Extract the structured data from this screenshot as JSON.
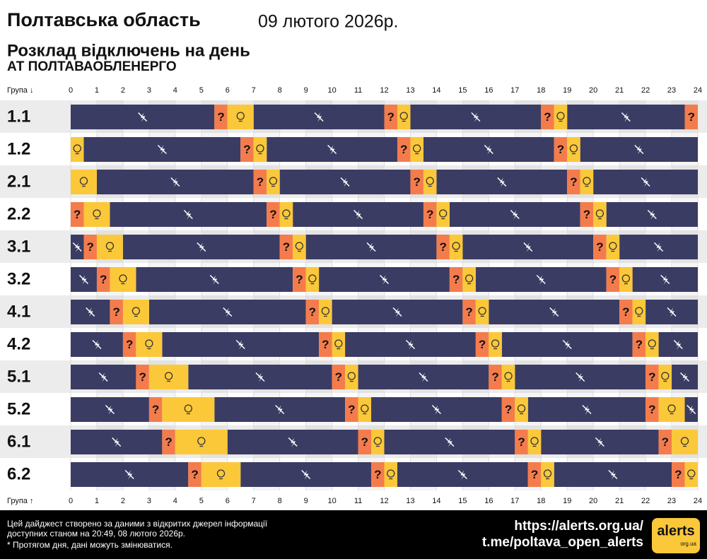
{
  "chart_data": {
    "type": "timeline",
    "title": "Полтавська область",
    "date": "09 лютого 2026р.",
    "subtitle": "Розклад відключень на день",
    "company": "АТ ПОЛТАВАОБЛЕНЕРГО",
    "axis_label_top": "Група ↓",
    "axis_label_bottom": "Група ↑",
    "xlim": [
      0,
      24
    ],
    "xticks": [
      0,
      1,
      2,
      3,
      4,
      5,
      6,
      7,
      8,
      9,
      10,
      11,
      12,
      13,
      14,
      15,
      16,
      17,
      18,
      19,
      20,
      21,
      22,
      23,
      24
    ],
    "groups": [
      "1.1",
      "1.2",
      "2.1",
      "2.2",
      "3.1",
      "3.2",
      "4.1",
      "4.2",
      "5.1",
      "5.2",
      "6.1",
      "6.2"
    ],
    "series": [
      {
        "color": "#3b3c63",
        "ranges": [
          [
            [
              0,
              5.5
            ],
            [
              7,
              12
            ],
            [
              13,
              18
            ],
            [
              19,
              23.5
            ]
          ],
          [
            [
              0.5,
              6.5
            ],
            [
              7.5,
              12.5
            ],
            [
              13.5,
              18.5
            ],
            [
              19.5,
              24
            ]
          ],
          [
            [
              1,
              7
            ],
            [
              8,
              13
            ],
            [
              14,
              19
            ],
            [
              20,
              24
            ]
          ],
          [
            [
              1.5,
              7.5
            ],
            [
              8.5,
              13.5
            ],
            [
              14.5,
              19.5
            ],
            [
              20.5,
              24
            ]
          ],
          [
            [
              0,
              0.5
            ],
            [
              2,
              8
            ],
            [
              9,
              14
            ],
            [
              15,
              20
            ],
            [
              21,
              24
            ]
          ],
          [
            [
              0,
              1
            ],
            [
              2.5,
              8.5
            ],
            [
              9.5,
              14.5
            ],
            [
              15.5,
              20.5
            ],
            [
              21.5,
              24
            ]
          ],
          [
            [
              0,
              1.5
            ],
            [
              3,
              9
            ],
            [
              10,
              15
            ],
            [
              16,
              21
            ],
            [
              22,
              24
            ]
          ],
          [
            [
              0,
              2
            ],
            [
              3.5,
              9.5
            ],
            [
              10.5,
              15.5
            ],
            [
              16.5,
              21.5
            ],
            [
              22.5,
              24
            ]
          ],
          [
            [
              0,
              2.5
            ],
            [
              4.5,
              10
            ],
            [
              11,
              16
            ],
            [
              17,
              22
            ],
            [
              23,
              24
            ]
          ],
          [
            [
              0,
              3
            ],
            [
              5.5,
              10.5
            ],
            [
              11.5,
              16.5
            ],
            [
              17.5,
              22
            ],
            [
              23.5,
              24
            ]
          ],
          [
            [
              0,
              3.5
            ],
            [
              6,
              11
            ],
            [
              12,
              17
            ],
            [
              18,
              22.5
            ]
          ],
          [
            [
              0,
              4.5
            ],
            [
              6.5,
              11.5
            ],
            [
              12.5,
              17.5
            ],
            [
              18.5,
              23
            ]
          ]
        ]
      },
      {
        "color": "#f47c4c",
        "label": "?",
        "ranges": [
          [
            [
              5.5,
              6
            ],
            [
              12,
              12.5
            ],
            [
              18,
              18.5
            ],
            [
              23.5,
              24
            ]
          ],
          [
            [
              6.5,
              7
            ],
            [
              12.5,
              13
            ],
            [
              18.5,
              19
            ]
          ],
          [
            [
              7,
              7.5
            ],
            [
              13,
              13.5
            ],
            [
              19,
              19.5
            ]
          ],
          [
            [
              0,
              0.5
            ],
            [
              7.5,
              8
            ],
            [
              13.5,
              14
            ],
            [
              19.5,
              20
            ]
          ],
          [
            [
              0.5,
              1
            ],
            [
              8,
              8.5
            ],
            [
              14,
              14.5
            ],
            [
              20,
              20.5
            ]
          ],
          [
            [
              1,
              1.5
            ],
            [
              8.5,
              9
            ],
            [
              14.5,
              15
            ],
            [
              20.5,
              21
            ]
          ],
          [
            [
              1.5,
              2
            ],
            [
              9,
              9.5
            ],
            [
              15,
              15.5
            ],
            [
              21,
              21.5
            ]
          ],
          [
            [
              2,
              2.5
            ],
            [
              9.5,
              10
            ],
            [
              15.5,
              16
            ],
            [
              21.5,
              22
            ]
          ],
          [
            [
              2.5,
              3
            ],
            [
              10,
              10.5
            ],
            [
              16,
              16.5
            ],
            [
              22,
              22.5
            ]
          ],
          [
            [
              3,
              3.5
            ],
            [
              10.5,
              11
            ],
            [
              16.5,
              17
            ],
            [
              22,
              22.5
            ]
          ],
          [
            [
              3.5,
              4
            ],
            [
              11,
              11.5
            ],
            [
              17,
              17.5
            ],
            [
              22.5,
              23
            ]
          ],
          [
            [
              4.5,
              5
            ],
            [
              11.5,
              12
            ],
            [
              17.5,
              18
            ],
            [
              23,
              23.5
            ]
          ]
        ]
      },
      {
        "color": "#fbc83a",
        "ranges": [
          [
            [
              6,
              7
            ],
            [
              12.5,
              13
            ],
            [
              18.5,
              19
            ]
          ],
          [
            [
              0,
              0.5
            ],
            [
              7,
              7.5
            ],
            [
              13,
              13.5
            ],
            [
              19,
              19.5
            ]
          ],
          [
            [
              0,
              1
            ],
            [
              7.5,
              8
            ],
            [
              13.5,
              14
            ],
            [
              19.5,
              20
            ]
          ],
          [
            [
              0.5,
              1.5
            ],
            [
              8,
              8.5
            ],
            [
              14,
              14.5
            ],
            [
              20,
              20.5
            ]
          ],
          [
            [
              1,
              2
            ],
            [
              8.5,
              9
            ],
            [
              14.5,
              15
            ],
            [
              20.5,
              21
            ]
          ],
          [
            [
              1.5,
              2.5
            ],
            [
              9,
              9.5
            ],
            [
              15,
              15.5
            ],
            [
              21,
              21.5
            ]
          ],
          [
            [
              2,
              3
            ],
            [
              9.5,
              10
            ],
            [
              15.5,
              16
            ],
            [
              21.5,
              22
            ]
          ],
          [
            [
              2.5,
              3.5
            ],
            [
              10,
              10.5
            ],
            [
              16,
              16.5
            ],
            [
              22,
              22.5
            ]
          ],
          [
            [
              3,
              4.5
            ],
            [
              10.5,
              11
            ],
            [
              16.5,
              17
            ],
            [
              22.5,
              23
            ]
          ],
          [
            [
              3.5,
              5.5
            ],
            [
              11,
              11.5
            ],
            [
              17,
              17.5
            ],
            [
              22.5,
              23.5
            ]
          ],
          [
            [
              4,
              6
            ],
            [
              11.5,
              12
            ],
            [
              17.5,
              18
            ],
            [
              23,
              24
            ]
          ],
          [
            [
              5,
              6.5
            ],
            [
              12,
              12.5
            ],
            [
              18,
              18.5
            ],
            [
              23.5,
              24
            ]
          ]
        ]
      }
    ],
    "footer_lines": [
      "Цей дайджест створено за даними з відкритих джерел інформації",
      "доступних станом на 20:49, 08 лютого 2026р.",
      "* Протягом дня, дані можуть змінюватися."
    ],
    "links": [
      "https://alerts.org.ua/",
      "t.me/poltava_open_alerts"
    ],
    "logo": "alerts",
    "logo_sub": "org.ua"
  }
}
